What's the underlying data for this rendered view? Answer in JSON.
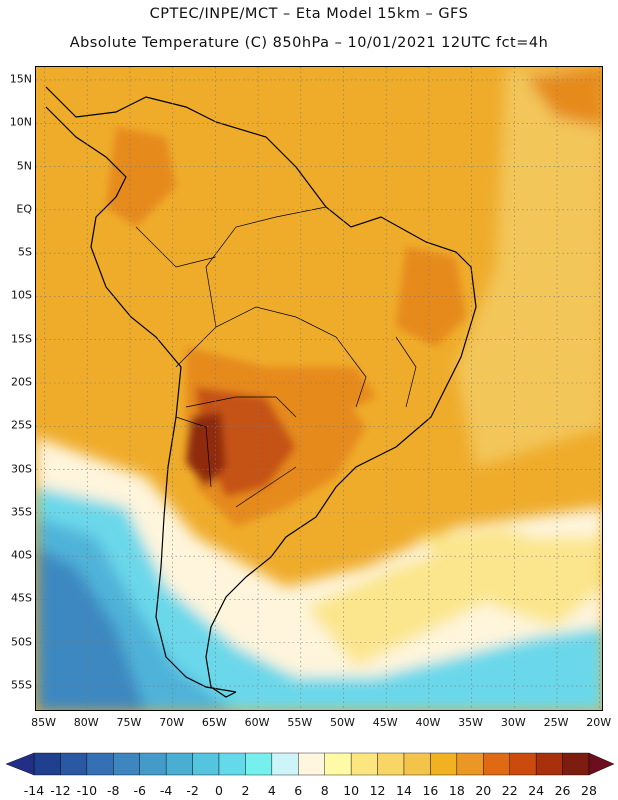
{
  "header": {
    "line1": "CPTEC/INPE/MCT –  Eta Model 15km – GFS",
    "line2": "Absolute Temperature (C) 850hPa – 10/01/2021 12UTC fct=4h"
  },
  "map": {
    "lat_labels": [
      "15N",
      "10N",
      "5N",
      "EQ",
      "5S",
      "10S",
      "15S",
      "20S",
      "25S",
      "30S",
      "35S",
      "40S",
      "45S",
      "50S",
      "55S"
    ],
    "lat_values": [
      15,
      10,
      5,
      0,
      -5,
      -10,
      -15,
      -20,
      -25,
      -30,
      -35,
      -40,
      -45,
      -50,
      -55
    ],
    "lon_labels": [
      "85W",
      "80W",
      "75W",
      "70W",
      "65W",
      "60W",
      "55W",
      "50W",
      "45W",
      "40W",
      "35W",
      "30W",
      "25W",
      "20W"
    ],
    "lon_values": [
      -85,
      -80,
      -75,
      -70,
      -65,
      -60,
      -55,
      -50,
      -45,
      -40,
      -35,
      -30,
      -25,
      -20
    ],
    "extent": {
      "lon_min": -86,
      "lon_max": -19.5,
      "lat_min": -58,
      "lat_max": 16.5
    }
  },
  "colorbar": {
    "labels": [
      "-14",
      "-12",
      "-10",
      "-8",
      "-6",
      "-4",
      "-2",
      "0",
      "2",
      "4",
      "6",
      "8",
      "10",
      "12",
      "14",
      "16",
      "18",
      "20",
      "22",
      "24",
      "26",
      "28"
    ],
    "colors": [
      "#1f3f8f",
      "#2b58a3",
      "#3470b3",
      "#3d86bf",
      "#449ac8",
      "#4aaed2",
      "#55c4de",
      "#63d9ea",
      "#76efef",
      "#cdf4f8",
      "#fff6e0",
      "#fffaa6",
      "#fde67f",
      "#f8d665",
      "#f4c44a",
      "#f1b121",
      "#ea9726",
      "#e06a13",
      "#cb4a0d",
      "#a8300b",
      "#7d1d10"
    ],
    "low_extend_color": "#232f86",
    "high_extend_color": "#6c0e1f"
  },
  "legend_colors": {
    "cold_deep": "#3e88c1",
    "cold": "#4fb3d9",
    "cyan": "#6ad8ea",
    "pale": "#fef5dc",
    "yellow": "#fbe68d",
    "warm": "#f3c65a",
    "orange": "#efac2b",
    "deep_orange": "#e68a1e",
    "red_orange": "#c65314",
    "brown": "#8f2a0f"
  }
}
